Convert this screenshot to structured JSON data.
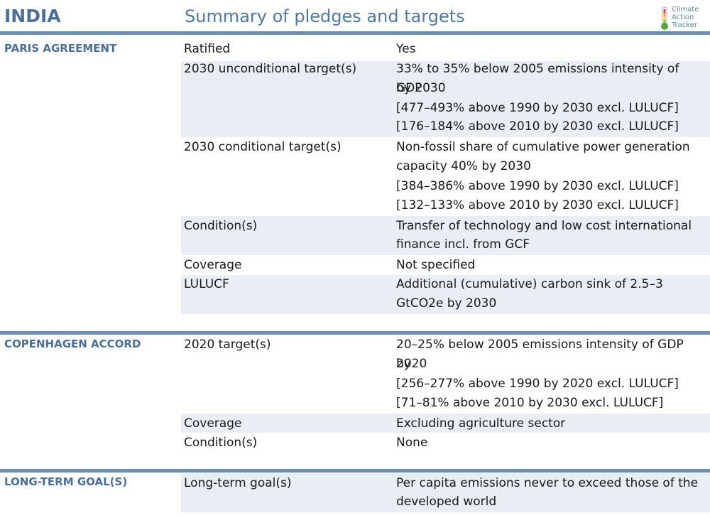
{
  "header": {
    "country": "INDIA",
    "subtitle": "Summary of pledges and targets",
    "logo_lines": [
      "Climate",
      "Action",
      "Tracker"
    ]
  },
  "colors": {
    "accent": "#4a6f9a",
    "bar": "#6d8db3",
    "band": "#e8eef4"
  },
  "sections": [
    {
      "title": "PARIS AGREEMENT",
      "rows": [
        {
          "label": "Ratified",
          "lines": [
            "Yes"
          ]
        },
        {
          "label": "2030 unconditional target(s)",
          "lines": [
            "33% to 35% below 2005 emissions intensity of GDP",
            "by 2030",
            "[477–493% above 1990 by 2030 excl. LULUCF]",
            "[176–184% above 2010 by 2030 excl. LULUCF]"
          ]
        },
        {
          "label": "2030 conditional target(s)",
          "lines": [
            "Non-fossil share of cumulative power generation",
            "capacity 40% by 2030",
            "[384–386% above 1990 by 2030 excl. LULUCF]",
            "[132–133% above 2010 by 2030 excl. LULUCF]"
          ]
        },
        {
          "label": "Condition(s)",
          "lines": [
            "Transfer of technology and low cost international",
            "finance incl. from GCF"
          ]
        },
        {
          "label": "Coverage",
          "lines": [
            "Not specified"
          ]
        },
        {
          "label": "LULUCF",
          "lines": [
            "Additional (cumulative) carbon sink of 2.5–3",
            "GtCO2e by 2030"
          ]
        }
      ]
    },
    {
      "title": "COPENHAGEN ACCORD",
      "rows": [
        {
          "label": "2020 target(s)",
          "lines": [
            "20–25% below 2005 emissions intensity of GDP by",
            "2020",
            "[256–277% above 1990 by 2020 excl. LULUCF]",
            "[71–81% above 2010 by 2030 excl. LULUCF]"
          ]
        },
        {
          "label": "Coverage",
          "lines": [
            "Excluding agriculture sector"
          ]
        },
        {
          "label": "Condition(s)",
          "lines": [
            "None"
          ]
        }
      ]
    },
    {
      "title": "LONG-TERM GOAL(S)",
      "rows": [
        {
          "label": "Long-term goal(s)",
          "lines": [
            "Per capita emissions never to exceed those of the",
            "developed world"
          ]
        }
      ]
    }
  ]
}
